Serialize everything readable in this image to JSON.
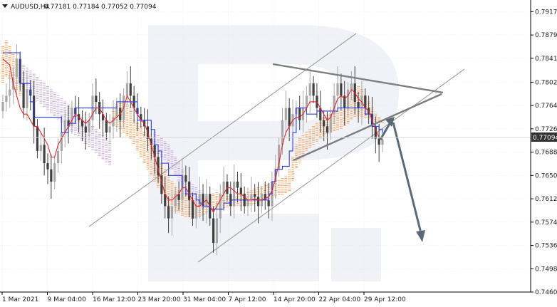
{
  "header": {
    "symbol": "AUDUSD,H4",
    "ohlc": "0.77181 0.77184 0.77052 0.77094"
  },
  "chart_data": {
    "type": "candlestick",
    "symbol": "AUDUSD",
    "timeframe": "H4",
    "last_price": "0.77094",
    "x_tick_labels": [
      "1 Mar 2021",
      "9 Mar 04:00",
      "16 Mar 12:00",
      "23 Mar 20:00",
      "31 Mar 04:00",
      "7 Apr 12:00",
      "14 Apr 20:00",
      "22 Apr 04:00",
      "29 Apr 12:00"
    ],
    "y_tick_labels": [
      "0.79170",
      "0.78790",
      "0.78410",
      "0.78020",
      "0.77640",
      "0.77260",
      "0.76880",
      "0.76500",
      "0.76120",
      "0.75740",
      "0.75360",
      "0.74980",
      "0.74600"
    ],
    "ylim": [
      0.746,
      0.7936
    ],
    "series_close": [
      0.777,
      0.778,
      0.779,
      0.781,
      0.784,
      0.78,
      0.776,
      0.779,
      0.778,
      0.773,
      0.769,
      0.77,
      0.767,
      0.766,
      0.764,
      0.767,
      0.769,
      0.772,
      0.774,
      0.773,
      0.776,
      0.775,
      0.774,
      0.773,
      0.772,
      0.774,
      0.778,
      0.777,
      0.775,
      0.774,
      0.772,
      0.773,
      0.7745,
      0.776,
      0.774,
      0.778,
      0.78,
      0.778,
      0.776,
      0.775,
      0.774,
      0.773,
      0.771,
      0.77,
      0.768,
      0.765,
      0.762,
      0.76,
      0.758,
      0.76,
      0.762,
      0.761,
      0.765,
      0.764,
      0.761,
      0.758,
      0.76,
      0.762,
      0.76,
      0.762,
      0.758,
      0.754,
      0.758,
      0.762,
      0.764,
      0.762,
      0.76,
      0.764,
      0.763,
      0.762,
      0.76,
      0.761,
      0.762,
      0.7615,
      0.76,
      0.762,
      0.761,
      0.76,
      0.764,
      0.766,
      0.77,
      0.774,
      0.776,
      0.773,
      0.775,
      0.776,
      0.774,
      0.776,
      0.778,
      0.78,
      0.778,
      0.776,
      0.774,
      0.773,
      0.772,
      0.775,
      0.778,
      0.78,
      0.778,
      0.776,
      0.779,
      0.78,
      0.777,
      0.776,
      0.778,
      0.776,
      0.775,
      0.773,
      0.771,
      0.77,
      0.7709
    ],
    "tenkan": [
      0.784,
      0.7835,
      0.783,
      0.78,
      0.778,
      0.776,
      0.775,
      0.775,
      0.774,
      0.773,
      0.773,
      0.772,
      0.771,
      0.77,
      0.768,
      0.768,
      0.77,
      0.771,
      0.772,
      0.773,
      0.774,
      0.775,
      0.7745,
      0.774,
      0.7735,
      0.774,
      0.775,
      0.776,
      0.776,
      0.775,
      0.774,
      0.7735,
      0.774,
      0.7745,
      0.775,
      0.776,
      0.778,
      0.777,
      0.776,
      0.775,
      0.774,
      0.7735,
      0.772,
      0.77,
      0.768,
      0.766,
      0.764,
      0.762,
      0.761,
      0.761,
      0.7615,
      0.762,
      0.763,
      0.763,
      0.762,
      0.761,
      0.76,
      0.76,
      0.7605,
      0.761,
      0.76,
      0.759,
      0.76,
      0.761,
      0.762,
      0.763,
      0.763,
      0.7625,
      0.762,
      0.762,
      0.7615,
      0.761,
      0.761,
      0.7612,
      0.761,
      0.761,
      0.7612,
      0.7615,
      0.7625,
      0.7645,
      0.767,
      0.77,
      0.772,
      0.773,
      0.774,
      0.7745,
      0.7745,
      0.775,
      0.776,
      0.777,
      0.777,
      0.777,
      0.776,
      0.775,
      0.774,
      0.7745,
      0.776,
      0.7775,
      0.778,
      0.7775,
      0.778,
      0.779,
      0.7785,
      0.7775,
      0.777,
      0.776,
      0.7755,
      0.774,
      0.7725,
      0.7712,
      0.7708
    ],
    "kijun": [
      0.785,
      0.785,
      0.785,
      0.785,
      0.785,
      0.78,
      0.78,
      0.78,
      0.777,
      0.7745,
      0.7745,
      0.7745,
      0.7745,
      0.7745,
      0.7745,
      0.7745,
      0.7745,
      0.772,
      0.772,
      0.7735,
      0.7735,
      0.776,
      0.776,
      0.776,
      0.776,
      0.776,
      0.776,
      0.776,
      0.776,
      0.776,
      0.776,
      0.776,
      0.776,
      0.777,
      0.777,
      0.777,
      0.777,
      0.777,
      0.777,
      0.774,
      0.774,
      0.774,
      0.774,
      0.7725,
      0.77,
      0.769,
      0.767,
      0.767,
      0.765,
      0.765,
      0.765,
      0.765,
      0.763,
      0.762,
      0.762,
      0.762,
      0.761,
      0.7605,
      0.76,
      0.76,
      0.7595,
      0.7595,
      0.7595,
      0.7595,
      0.7605,
      0.7605,
      0.761,
      0.761,
      0.761,
      0.761,
      0.761,
      0.761,
      0.761,
      0.761,
      0.761,
      0.761,
      0.761,
      0.762,
      0.764,
      0.766,
      0.766,
      0.7665,
      0.7665,
      0.769,
      0.772,
      0.776,
      0.776,
      0.776,
      0.775,
      0.775,
      0.775,
      0.7755,
      0.7755,
      0.7755,
      0.7755,
      0.7755,
      0.7755,
      0.776,
      0.776,
      0.776,
      0.776,
      0.776,
      0.776,
      0.776,
      0.776,
      0.775,
      0.775,
      0.773,
      0.773,
      0.7725,
      0.772
    ],
    "cloud_orange_upper": [
      0.786,
      0.787,
      0.786,
      0.785,
      0.784,
      0.783,
      null,
      null,
      null,
      null,
      null,
      null,
      null,
      null,
      null,
      null,
      null,
      null,
      null,
      null,
      null,
      null,
      null,
      null,
      null,
      null,
      null,
      null,
      null,
      null,
      null,
      null,
      0.776,
      0.7765,
      0.777,
      0.777,
      0.7765,
      0.776,
      0.774,
      0.7735,
      0.773,
      0.772,
      0.771,
      0.77,
      0.769,
      0.768,
      0.767,
      0.766,
      0.765,
      0.764,
      0.763,
      0.7625,
      0.762,
      0.7618,
      0.7615,
      0.7612,
      0.761,
      0.761,
      0.7612,
      0.7615,
      0.7618,
      0.762,
      0.7622,
      0.762,
      0.7618,
      0.7616,
      0.7615,
      0.7615,
      0.7616,
      0.7618,
      0.762,
      0.7622,
      0.7625,
      0.7628,
      0.763,
      0.7632,
      0.7634,
      0.7636,
      0.7638,
      0.764,
      0.7642,
      0.7645,
      0.7648,
      0.766,
      0.768,
      0.77,
      0.771,
      0.7715,
      0.772,
      0.7725,
      0.773,
      0.7735,
      0.774,
      0.7745,
      0.7748,
      0.775,
      0.7752,
      0.7754,
      0.7756,
      0.776,
      0.777,
      0.778,
      0.779,
      0.7795,
      0.779,
      0.778,
      0.777,
      0.776,
      0.775,
      0.7745,
      0.774
    ],
    "cloud_orange_lower": [
      0.78,
      0.781,
      0.7805,
      0.78,
      0.779,
      0.778,
      null,
      null,
      null,
      null,
      null,
      null,
      null,
      null,
      null,
      null,
      null,
      null,
      null,
      null,
      null,
      null,
      null,
      null,
      null,
      null,
      null,
      null,
      null,
      null,
      null,
      null,
      0.773,
      0.7728,
      0.7725,
      0.772,
      0.7715,
      0.771,
      0.77,
      0.769,
      0.768,
      0.767,
      0.766,
      0.765,
      0.764,
      0.763,
      0.762,
      0.761,
      0.76,
      0.7595,
      0.759,
      0.7588,
      0.7585,
      0.7583,
      0.7582,
      0.758,
      0.758,
      0.7582,
      0.7585,
      0.7588,
      0.759,
      0.7592,
      0.7594,
      0.7595,
      0.7596,
      0.7597,
      0.7598,
      0.7599,
      0.76,
      0.76,
      0.76,
      0.76,
      0.76,
      0.7602,
      0.7604,
      0.7606,
      0.7608,
      0.761,
      0.7612,
      0.7614,
      0.7616,
      0.7618,
      0.762,
      0.7625,
      0.764,
      0.766,
      0.767,
      0.768,
      0.769,
      0.7695,
      0.77,
      0.7705,
      0.771,
      0.7715,
      0.7718,
      0.772,
      0.7722,
      0.7724,
      0.7726,
      0.773,
      0.7735,
      0.774,
      0.7745,
      0.7748,
      0.7746,
      0.7744,
      0.7742,
      0.774,
      0.7738,
      0.7736,
      0.7735
    ],
    "cloud_purple_upper": [
      null,
      null,
      null,
      null,
      null,
      null,
      0.783,
      0.7825,
      0.782,
      0.7815,
      0.781,
      0.7805,
      0.78,
      0.7795,
      0.779,
      0.7785,
      0.778,
      0.7775,
      0.777,
      0.7765,
      0.776,
      0.7755,
      0.775,
      0.7745,
      0.774,
      0.7735,
      0.773,
      0.7725,
      0.772,
      0.7715,
      0.771,
      0.7705,
      null,
      null,
      null,
      null,
      null,
      null,
      null,
      null,
      null,
      null,
      null,
      null,
      0.772,
      0.7715,
      0.771,
      0.7705,
      0.77,
      0.769,
      0.768,
      0.767,
      0.766,
      0.765,
      0.764,
      0.7635,
      0.763,
      0.7625,
      0.762,
      null,
      null,
      null,
      null,
      null,
      null,
      null,
      null,
      null,
      null,
      null,
      null,
      null,
      null,
      null,
      null,
      null,
      null,
      null,
      null,
      null,
      null,
      null,
      null,
      null,
      null,
      null,
      null,
      null,
      null,
      null,
      null,
      null,
      null,
      null,
      null,
      null,
      null,
      null,
      null,
      null,
      null,
      null,
      null,
      null,
      null,
      null,
      null,
      null,
      null,
      null,
      null
    ],
    "cloud_purple_lower": [
      null,
      null,
      null,
      null,
      null,
      null,
      0.779,
      0.7785,
      0.778,
      0.7775,
      0.777,
      0.7765,
      0.776,
      0.7755,
      0.775,
      0.7745,
      0.774,
      0.7735,
      0.773,
      0.7725,
      0.772,
      0.7715,
      0.771,
      0.7705,
      0.77,
      0.7695,
      0.769,
      0.7685,
      0.768,
      0.7675,
      0.767,
      0.7665,
      null,
      null,
      null,
      null,
      null,
      null,
      null,
      null,
      null,
      null,
      null,
      null,
      0.769,
      0.7685,
      0.768,
      0.7675,
      0.767,
      0.766,
      0.765,
      0.764,
      0.763,
      0.762,
      0.761,
      0.7605,
      0.76,
      0.7598,
      0.7596,
      null,
      null,
      null,
      null,
      null,
      null,
      null,
      null,
      null,
      null,
      null,
      null,
      null,
      null,
      null,
      null,
      null,
      null,
      null,
      null,
      null,
      null,
      null,
      null,
      null,
      null,
      null,
      null,
      null,
      null,
      null,
      null,
      null,
      null,
      null,
      null,
      null,
      null,
      null,
      null,
      null,
      null,
      null,
      null,
      null,
      null,
      null,
      null,
      null,
      null,
      null,
      null
    ]
  },
  "colors": {
    "bull_candle": "#a8a8a8",
    "bear_candle": "#3f3f3f",
    "tenkan": "#e3262f",
    "kijun": "#2a3de6",
    "cloud_orange": "#f4a460",
    "cloud_purple": "#c7a9d9",
    "channel": "#9e9e9e",
    "triangle": "#7a7d82",
    "arrow": "#5a6a76",
    "price_badge": "#333333",
    "watermark": "#eef0f5"
  }
}
